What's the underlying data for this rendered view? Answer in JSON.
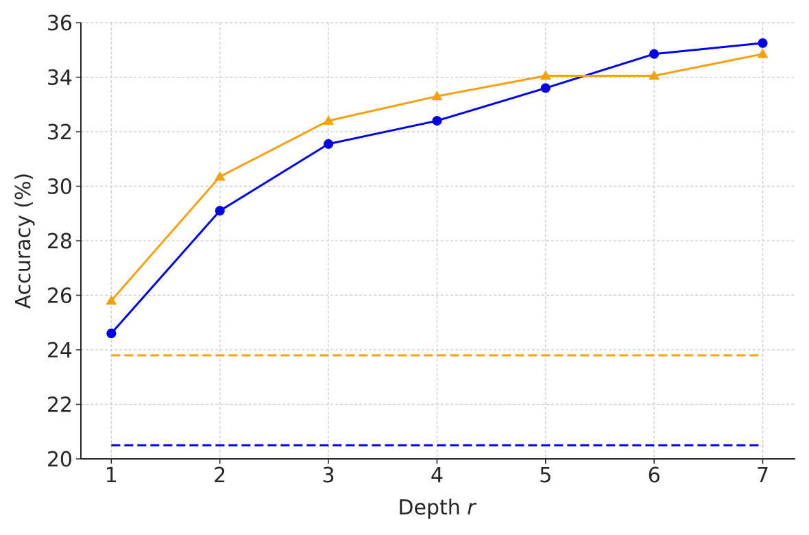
{
  "chart_data": {
    "type": "line",
    "title": "",
    "xlabel": "Depth",
    "xlabel_var": "r",
    "ylabel": "Accuracy (%)",
    "x": [
      1,
      2,
      3,
      4,
      5,
      6,
      7
    ],
    "xlim": [
      0.72,
      7.3
    ],
    "ylim": [
      20,
      36
    ],
    "yticks": [
      20,
      22,
      24,
      26,
      28,
      30,
      32,
      34,
      36
    ],
    "grid": true,
    "legend": "none",
    "series": [
      {
        "color": "#0000e6",
        "marker": "circle",
        "values": [
          24.6,
          29.1,
          31.55,
          32.4,
          33.6,
          34.85,
          35.25
        ]
      },
      {
        "color": "#f5a10d",
        "marker": "triangle",
        "values": [
          25.8,
          30.35,
          32.4,
          33.3,
          34.05,
          34.05,
          34.85
        ]
      }
    ],
    "baselines": [
      {
        "color": "#f5a10d",
        "value": 23.8,
        "style": "dashed"
      },
      {
        "color": "#0000e6",
        "value": 20.5,
        "style": "dashed"
      }
    ]
  }
}
